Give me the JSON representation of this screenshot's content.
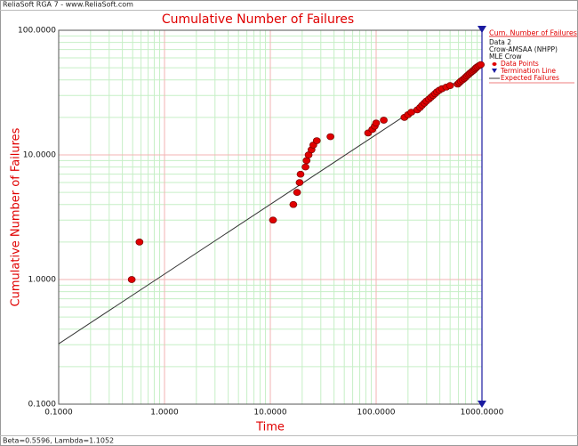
{
  "chart_data": {
    "type": "scatter",
    "header": "ReliaSoft RGA 7 - www.ReliaSoft.com",
    "title": "Cumulative Number of Failures",
    "xlabel": "Time",
    "ylabel": "Cumulative Number of Failures",
    "footer": "Beta=0.5596, Lambda=1.1052",
    "log_x": true,
    "log_y": true,
    "grid": true,
    "xlim": [
      0.1,
      1000
    ],
    "ylim": [
      0.1,
      100
    ],
    "xticks": [
      {
        "value": 0.1,
        "label": "0.1000"
      },
      {
        "value": 1,
        "label": "1.0000"
      },
      {
        "value": 10,
        "label": "10.0000"
      },
      {
        "value": 100,
        "label": "100.0000"
      },
      {
        "value": 1000,
        "label": "1000.0000"
      }
    ],
    "yticks": [
      {
        "value": 0.1,
        "label": "0.1000"
      },
      {
        "value": 1,
        "label": "1.0000"
      },
      {
        "value": 10,
        "label": "10.0000"
      },
      {
        "value": 100,
        "label": "100.0000"
      }
    ],
    "legend_position": "right",
    "legend_title": "Cum. Number of Failures",
    "legend_lines": [
      "Data 2",
      "Crow-AMSAA (NHPP)",
      "MLE Crow"
    ],
    "series": [
      {
        "name": "Data Points",
        "color": "#e00000",
        "x": [
          0.49,
          0.58,
          10.6,
          16.5,
          17.9,
          18.9,
          19.3,
          21.5,
          22,
          23,
          24.5,
          25.5,
          27.5,
          37,
          84,
          92,
          97,
          100,
          118,
          185,
          200,
          215,
          245,
          260,
          272,
          285,
          298,
          315,
          330,
          345,
          360,
          375,
          395,
          420,
          460,
          500,
          590,
          610,
          630,
          655,
          680,
          700,
          720,
          745,
          765,
          790,
          815,
          840,
          860,
          880,
          905,
          940,
          975
        ],
        "values": [
          1,
          2,
          3,
          4,
          5,
          6,
          7,
          8,
          9,
          10,
          11,
          12,
          13,
          14,
          15,
          16,
          17,
          18,
          19,
          20,
          21,
          22,
          23,
          24,
          25,
          26,
          27,
          28,
          29,
          30,
          31,
          32,
          33,
          34,
          35,
          36,
          37,
          38,
          39,
          40,
          41,
          42,
          43,
          44,
          45,
          46,
          47,
          48,
          49,
          50,
          51,
          52,
          53
        ]
      }
    ],
    "termination": {
      "name": "Termination Line",
      "color": "#1a1aa0",
      "x": 1000
    },
    "expected": {
      "name": "Expected Failures",
      "color": "#333333",
      "x": [
        0.1,
        1000
      ],
      "values": [
        0.305,
        52.7
      ]
    }
  }
}
